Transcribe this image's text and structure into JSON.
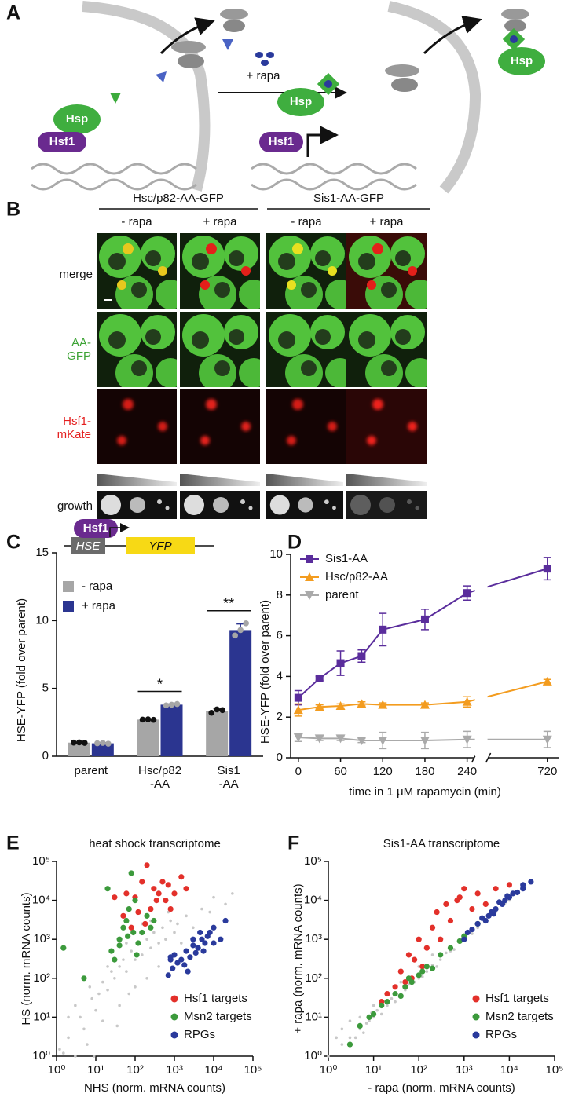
{
  "panel_labels": [
    "A",
    "B",
    "C",
    "D",
    "E",
    "F"
  ],
  "diagram": {
    "labels": [
      "Hsp",
      "Hsf1",
      "+ rapa",
      "Hsp",
      "Hsf1",
      "Hsp"
    ]
  },
  "micrographs": {
    "groups": [
      "Hsc/p82-AA-GFP",
      "Sis1-AA-GFP"
    ],
    "columns": [
      "- rapa",
      "+ rapa",
      "- rapa",
      "+ rapa"
    ],
    "rows": [
      "merge",
      "AA-\nGFP",
      "Hsf1-\nmKate",
      "growth"
    ]
  },
  "chart_data": [
    {
      "type": "bar",
      "ylabel": "HSE-YFP (fold over parent)",
      "categories": [
        "parent",
        "Hsc/p82\n-AA",
        "Sis1\n-AA"
      ],
      "series": [
        {
          "name": "- rapa",
          "color": "#a6a6a6",
          "point_color": "#111111",
          "values": [
            1.0,
            2.7,
            3.35
          ],
          "errors": [
            0.03,
            0.03,
            0.15
          ],
          "points": [
            [
              1.0,
              1.02,
              0.98
            ],
            [
              2.7,
              2.72,
              2.68
            ],
            [
              3.2,
              3.45,
              3.4
            ]
          ]
        },
        {
          "name": "+ rapa",
          "color": "#2b3590",
          "point_color": "#a6a6a6",
          "values": [
            0.95,
            3.8,
            9.3
          ],
          "errors": [
            0.05,
            0.05,
            0.45
          ],
          "points": [
            [
              0.95,
              0.98,
              0.92
            ],
            [
              3.75,
              3.8,
              3.85
            ],
            [
              8.9,
              9.3,
              9.8
            ]
          ]
        }
      ],
      "ylim": [
        0,
        15
      ],
      "yticks": [
        0,
        5,
        10,
        15
      ],
      "legend": "upper left",
      "annotations": [
        null,
        "*",
        "**"
      ],
      "construct_labels": [
        "Hsf1",
        "HSE",
        "YFP"
      ]
    },
    {
      "type": "line",
      "ylabel": "HSE-YFP (fold over parent)",
      "xlabel": "time in 1 μM rapamycin (min)",
      "x": [
        0,
        30,
        60,
        90,
        120,
        180,
        240,
        720
      ],
      "series": [
        {
          "name": "Sis1-AA",
          "color": "#5a2d9c",
          "marker": "square",
          "values": [
            2.95,
            3.9,
            4.65,
            5.0,
            6.3,
            6.8,
            8.1,
            9.3
          ],
          "errors": [
            0.35,
            0.1,
            0.6,
            0.3,
            0.8,
            0.5,
            0.35,
            0.55
          ]
        },
        {
          "name": "Hsc/p82-AA",
          "color": "#f39c1f",
          "marker": "triangle-up",
          "values": [
            2.35,
            2.5,
            2.55,
            2.65,
            2.6,
            2.6,
            2.75,
            3.75
          ],
          "errors": [
            0.3,
            0.1,
            0.1,
            0.1,
            0.1,
            0.1,
            0.25,
            0.1
          ]
        },
        {
          "name": "parent",
          "color": "#aaaaaa",
          "marker": "triangle-down",
          "values": [
            1.0,
            0.95,
            0.95,
            0.85,
            0.85,
            0.85,
            0.9,
            0.9
          ],
          "errors": [
            0.2,
            0.1,
            0.1,
            0.1,
            0.4,
            0.4,
            0.4,
            0.4
          ]
        }
      ],
      "xlim": [
        -11,
        737
      ],
      "xbreak": [
        250,
        636
      ],
      "xticks": [
        0,
        60,
        120,
        180,
        240,
        720
      ],
      "ylim": [
        0,
        10
      ],
      "yticks": [
        0,
        2,
        4,
        6,
        8,
        10
      ],
      "legend": "upper left"
    },
    {
      "type": "scatter",
      "title": "heat shock transcriptome",
      "xlabel": "NHS (norm. mRNA counts)",
      "ylabel": "HS (norm. mRNA counts)",
      "log_scale": true,
      "xlim": [
        1,
        100000
      ],
      "ylim": [
        1,
        100000
      ],
      "xticks": [
        {
          "value": 1,
          "label": "10⁰"
        },
        {
          "value": 10,
          "label": "10¹"
        },
        {
          "value": 100,
          "label": "10²"
        },
        {
          "value": 1000,
          "label": "10³"
        },
        {
          "value": 10000,
          "label": "10⁴"
        },
        {
          "value": 100000,
          "label": "10⁵"
        }
      ],
      "yticks": [
        {
          "value": 1,
          "label": "10⁰"
        },
        {
          "value": 10,
          "label": "10¹"
        },
        {
          "value": 100,
          "label": "10²"
        },
        {
          "value": 1000,
          "label": "10³"
        },
        {
          "value": 10000,
          "label": "10⁴"
        },
        {
          "value": 100000,
          "label": "10⁵"
        }
      ],
      "legend": "lower right",
      "series": [
        {
          "name": null,
          "color": "#c8c8c8",
          "x": [
            1.2,
            1.5,
            2,
            2,
            3,
            3,
            4,
            5,
            6,
            7,
            8,
            9,
            10,
            12,
            15,
            15,
            20,
            20,
            25,
            30,
            35,
            40,
            40,
            50,
            60,
            60,
            70,
            80,
            100,
            100,
            120,
            150,
            150,
            200,
            200,
            250,
            250,
            300,
            400,
            400,
            500,
            600,
            700,
            800,
            1000,
            1200,
            1500,
            2000,
            3000,
            5000,
            8000,
            10000,
            20000,
            30000
          ],
          "values": [
            1.5,
            1.2,
            3,
            10,
            20,
            1,
            10,
            5,
            2,
            60,
            30,
            1,
            15,
            40,
            80,
            8,
            50,
            200,
            150,
            100,
            6,
            200,
            20,
            300,
            150,
            800,
            40,
            500,
            300,
            60,
            800,
            400,
            2500,
            1000,
            100,
            600,
            3000,
            1500,
            800,
            200,
            2000,
            1000,
            5000,
            3000,
            1500,
            2500,
            800,
            4000,
            2000,
            6000,
            5000,
            12000,
            8000,
            15000
          ]
        },
        {
          "name": "Hsf1 targets",
          "color": "#e3302a",
          "x": [
            30,
            50,
            60,
            80,
            100,
            120,
            150,
            180,
            200,
            250,
            300,
            350,
            400,
            500,
            600,
            700,
            800,
            1000,
            1500,
            2000
          ],
          "values": [
            12000,
            4000,
            15000,
            2000,
            12000,
            5000,
            30000,
            2500,
            80000,
            6000,
            20000,
            10000,
            15000,
            30000,
            10000,
            25000,
            6000,
            15000,
            40000,
            20000
          ]
        },
        {
          "name": "Msn2 targets",
          "color": "#3c9a3c",
          "x": [
            1.5,
            5,
            20,
            25,
            30,
            40,
            40,
            50,
            60,
            65,
            70,
            80,
            90,
            100,
            110,
            120,
            150,
            200,
            250,
            300
          ],
          "values": [
            600,
            100,
            20000,
            500,
            300,
            1000,
            700,
            2000,
            3000,
            1200,
            6000,
            50000,
            1500,
            10000,
            400,
            800,
            1500,
            4000,
            2000,
            3000
          ]
        },
        {
          "name": "RPGs",
          "color": "#2a3a9c",
          "x": [
            700,
            800,
            800,
            900,
            1000,
            1200,
            1500,
            1800,
            2000,
            2200,
            2500,
            3000,
            3000,
            3500,
            4000,
            4500,
            5000,
            5500,
            6000,
            7000,
            8000,
            10000,
            10000,
            15000,
            20000
          ],
          "values": [
            120,
            300,
            350,
            180,
            400,
            250,
            300,
            220,
            500,
            150,
            350,
            700,
            1000,
            450,
            600,
            1500,
            1000,
            500,
            800,
            1200,
            1500,
            2000,
            800,
            1000,
            3000
          ]
        }
      ]
    },
    {
      "type": "scatter",
      "title": "Sis1-AA transcriptome",
      "xlabel": "- rapa (norm. mRNA counts)",
      "ylabel": "+ rapa (norm. mRNA counts)",
      "log_scale": true,
      "xlim": [
        1,
        100000
      ],
      "ylim": [
        1,
        100000
      ],
      "xticks": [
        {
          "value": 1,
          "label": "10⁰"
        },
        {
          "value": 10,
          "label": "10¹"
        },
        {
          "value": 100,
          "label": "10²"
        },
        {
          "value": 1000,
          "label": "10³"
        },
        {
          "value": 10000,
          "label": "10⁴"
        },
        {
          "value": 100000,
          "label": "10⁵"
        }
      ],
      "yticks": [
        {
          "value": 1,
          "label": "10⁰"
        },
        {
          "value": 10,
          "label": "10¹"
        },
        {
          "value": 100,
          "label": "10²"
        },
        {
          "value": 1000,
          "label": "10³"
        },
        {
          "value": 10000,
          "label": "10⁴"
        },
        {
          "value": 100000,
          "label": "10⁵"
        }
      ],
      "legend": "lower right",
      "series": [
        {
          "name": null,
          "color": "#c8c8c8",
          "x": [
            1,
            1.5,
            2,
            2,
            3,
            3,
            4,
            5,
            5,
            6,
            7,
            8,
            9,
            10,
            10,
            12,
            15,
            20,
            20,
            25,
            30,
            40,
            40,
            50,
            60,
            80,
            100,
            100,
            120,
            150,
            200,
            200,
            250,
            300,
            400,
            500,
            600,
            800,
            1000,
            1500,
            2000,
            3000,
            5000,
            8000,
            10000
          ],
          "values": [
            1,
            3,
            2,
            5,
            3,
            8,
            3,
            5,
            10,
            4,
            7,
            8,
            13,
            10,
            20,
            15,
            12,
            20,
            40,
            30,
            25,
            40,
            80,
            50,
            70,
            80,
            100,
            200,
            110,
            150,
            220,
            400,
            200,
            300,
            450,
            500,
            550,
            900,
            1000,
            1400,
            2000,
            3200,
            5000,
            8500,
            10000
          ]
        },
        {
          "name": "Hsf1 targets",
          "color": "#e3302a",
          "x": [
            15,
            20,
            30,
            40,
            50,
            60,
            70,
            80,
            100,
            120,
            150,
            200,
            250,
            300,
            400,
            500,
            700,
            800,
            1000,
            1500,
            2000,
            3000,
            5000,
            10000
          ],
          "values": [
            25,
            40,
            60,
            150,
            80,
            400,
            100,
            300,
            1000,
            200,
            600,
            2000,
            5000,
            1000,
            8000,
            3000,
            10000,
            12000,
            20000,
            6000,
            15000,
            8000,
            20000,
            25000
          ]
        },
        {
          "name": "Msn2 targets",
          "color": "#3c9a3c",
          "x": [
            3,
            5,
            8,
            10,
            15,
            20,
            30,
            40,
            50,
            60,
            70,
            100,
            120,
            150,
            200,
            300,
            500,
            800,
            1000,
            2000
          ],
          "values": [
            2,
            6,
            10,
            12,
            20,
            25,
            40,
            35,
            60,
            100,
            80,
            120,
            150,
            200,
            180,
            400,
            600,
            900,
            1200,
            2500
          ]
        },
        {
          "name": "RPGs",
          "color": "#2a3a9c",
          "x": [
            1000,
            1200,
            1500,
            2000,
            2500,
            3000,
            3500,
            4000,
            4500,
            5000,
            6000,
            7000,
            8000,
            9000,
            10000,
            12000,
            15000,
            20000,
            20000,
            30000
          ],
          "values": [
            1000,
            1500,
            1800,
            2500,
            3500,
            3000,
            4000,
            5000,
            4500,
            6000,
            9000,
            8000,
            10000,
            13000,
            12000,
            15000,
            16000,
            20000,
            25000,
            30000
          ]
        }
      ]
    }
  ]
}
